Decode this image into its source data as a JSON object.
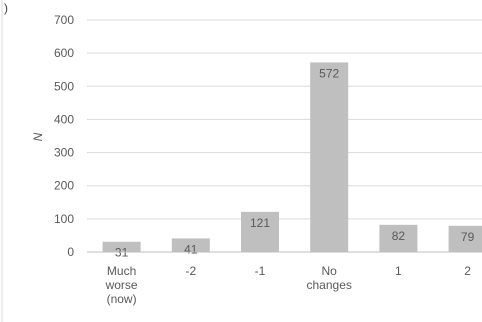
{
  "panel_letter": ")",
  "chart_data": {
    "type": "bar",
    "categories": [
      [
        "Much",
        "worse",
        "(now)"
      ],
      [
        "-2"
      ],
      [
        "-1"
      ],
      [
        "No",
        "changes"
      ],
      [
        "1"
      ],
      [
        "2"
      ]
    ],
    "values": [
      31,
      41,
      121,
      572,
      82,
      79
    ],
    "data_labels": [
      "31",
      "41",
      "121",
      "572",
      "82",
      "79"
    ],
    "ylabel": "N",
    "ylim": [
      0,
      700
    ],
    "yticks": [
      "0",
      "100",
      "200",
      "300",
      "400",
      "500",
      "600",
      "700"
    ],
    "grid": true,
    "bar_color": "#bfbfbf",
    "grid_color": "#d9d9d9",
    "axis_color": "#bfbfbf"
  }
}
